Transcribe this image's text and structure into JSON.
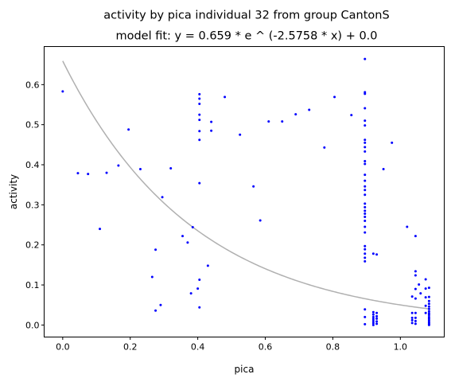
{
  "chart_data": {
    "type": "scatter",
    "title": "activity by pica individual 32 from group CantonS",
    "subtitle": "model fit: y = 0.659 * e ^ (-2.5758 * x) + 0.0",
    "xlabel": "pica",
    "ylabel": "activity",
    "xlim": [
      -0.055,
      1.13
    ],
    "ylim": [
      -0.03,
      0.695
    ],
    "x_ticks": [
      "0.0",
      "0.2",
      "0.4",
      "0.6",
      "0.8",
      "1.0"
    ],
    "y_ticks": [
      "0.0",
      "0.1",
      "0.2",
      "0.3",
      "0.4",
      "0.5",
      "0.6"
    ],
    "grid": false,
    "legend": "none",
    "point_color": "#0000ff",
    "fit_color": "#b0b0b0",
    "fit": {
      "a": 0.659,
      "b": -2.5758,
      "c": 0.0,
      "x_range": [
        0.0,
        1.085
      ]
    },
    "points": [
      [
        0.0,
        0.583
      ],
      [
        0.045,
        0.379
      ],
      [
        0.075,
        0.377
      ],
      [
        0.11,
        0.24
      ],
      [
        0.13,
        0.38
      ],
      [
        0.165,
        0.398
      ],
      [
        0.195,
        0.488
      ],
      [
        0.23,
        0.389
      ],
      [
        0.265,
        0.12
      ],
      [
        0.275,
        0.188
      ],
      [
        0.275,
        0.036
      ],
      [
        0.29,
        0.05
      ],
      [
        0.295,
        0.319
      ],
      [
        0.32,
        0.391
      ],
      [
        0.355,
        0.222
      ],
      [
        0.37,
        0.206
      ],
      [
        0.38,
        0.079
      ],
      [
        0.385,
        0.244
      ],
      [
        0.4,
        0.091
      ],
      [
        0.405,
        0.044
      ],
      [
        0.405,
        0.576
      ],
      [
        0.405,
        0.565
      ],
      [
        0.405,
        0.552
      ],
      [
        0.405,
        0.525
      ],
      [
        0.405,
        0.512
      ],
      [
        0.405,
        0.484
      ],
      [
        0.405,
        0.462
      ],
      [
        0.405,
        0.354
      ],
      [
        0.405,
        0.113
      ],
      [
        0.43,
        0.148
      ],
      [
        0.44,
        0.485
      ],
      [
        0.44,
        0.507
      ],
      [
        0.48,
        0.569
      ],
      [
        0.525,
        0.475
      ],
      [
        0.565,
        0.346
      ],
      [
        0.585,
        0.261
      ],
      [
        0.61,
        0.508
      ],
      [
        0.65,
        0.508
      ],
      [
        0.69,
        0.526
      ],
      [
        0.73,
        0.537
      ],
      [
        0.775,
        0.443
      ],
      [
        0.805,
        0.569
      ],
      [
        0.855,
        0.524
      ],
      [
        0.895,
        0.664
      ],
      [
        0.895,
        0.581
      ],
      [
        0.895,
        0.577
      ],
      [
        0.895,
        0.541
      ],
      [
        0.895,
        0.51
      ],
      [
        0.895,
        0.498
      ],
      [
        0.895,
        0.462
      ],
      [
        0.895,
        0.455
      ],
      [
        0.895,
        0.444
      ],
      [
        0.895,
        0.433
      ],
      [
        0.895,
        0.409
      ],
      [
        0.895,
        0.402
      ],
      [
        0.895,
        0.375
      ],
      [
        0.895,
        0.36
      ],
      [
        0.895,
        0.346
      ],
      [
        0.895,
        0.337
      ],
      [
        0.895,
        0.325
      ],
      [
        0.895,
        0.303
      ],
      [
        0.895,
        0.294
      ],
      [
        0.895,
        0.285
      ],
      [
        0.895,
        0.278
      ],
      [
        0.895,
        0.27
      ],
      [
        0.895,
        0.26
      ],
      [
        0.895,
        0.245
      ],
      [
        0.895,
        0.231
      ],
      [
        0.895,
        0.197
      ],
      [
        0.895,
        0.189
      ],
      [
        0.895,
        0.178
      ],
      [
        0.895,
        0.168
      ],
      [
        0.895,
        0.159
      ],
      [
        0.895,
        0.039
      ],
      [
        0.895,
        0.02
      ],
      [
        0.895,
        0.002
      ],
      [
        0.92,
        0.178
      ],
      [
        0.93,
        0.176
      ],
      [
        0.92,
        0.032
      ],
      [
        0.92,
        0.026
      ],
      [
        0.92,
        0.02
      ],
      [
        0.92,
        0.015
      ],
      [
        0.92,
        0.01
      ],
      [
        0.92,
        0.005
      ],
      [
        0.92,
        0.0
      ],
      [
        0.93,
        0.03
      ],
      [
        0.93,
        0.022
      ],
      [
        0.93,
        0.016
      ],
      [
        0.93,
        0.009
      ],
      [
        0.93,
        0.003
      ],
      [
        0.95,
        0.389
      ],
      [
        0.975,
        0.455
      ],
      [
        1.02,
        0.245
      ],
      [
        1.035,
        0.071
      ],
      [
        1.035,
        0.03
      ],
      [
        1.035,
        0.018
      ],
      [
        1.035,
        0.012
      ],
      [
        1.035,
        0.005
      ],
      [
        1.045,
        0.222
      ],
      [
        1.045,
        0.134
      ],
      [
        1.045,
        0.124
      ],
      [
        1.045,
        0.09
      ],
      [
        1.045,
        0.066
      ],
      [
        1.045,
        0.03
      ],
      [
        1.045,
        0.018
      ],
      [
        1.045,
        0.01
      ],
      [
        1.045,
        0.003
      ],
      [
        1.055,
        0.101
      ],
      [
        1.06,
        0.079
      ],
      [
        1.075,
        0.114
      ],
      [
        1.075,
        0.091
      ],
      [
        1.075,
        0.069
      ],
      [
        1.075,
        0.048
      ],
      [
        1.075,
        0.03
      ],
      [
        1.085,
        0.093
      ],
      [
        1.085,
        0.07
      ],
      [
        1.085,
        0.06
      ],
      [
        1.085,
        0.053
      ],
      [
        1.085,
        0.046
      ],
      [
        1.085,
        0.04
      ],
      [
        1.085,
        0.034
      ],
      [
        1.085,
        0.029
      ],
      [
        1.085,
        0.025
      ],
      [
        1.085,
        0.02
      ],
      [
        1.085,
        0.016
      ],
      [
        1.085,
        0.012
      ],
      [
        1.085,
        0.008
      ],
      [
        1.085,
        0.005
      ],
      [
        1.085,
        0.002
      ],
      [
        1.085,
        0.0
      ]
    ]
  }
}
